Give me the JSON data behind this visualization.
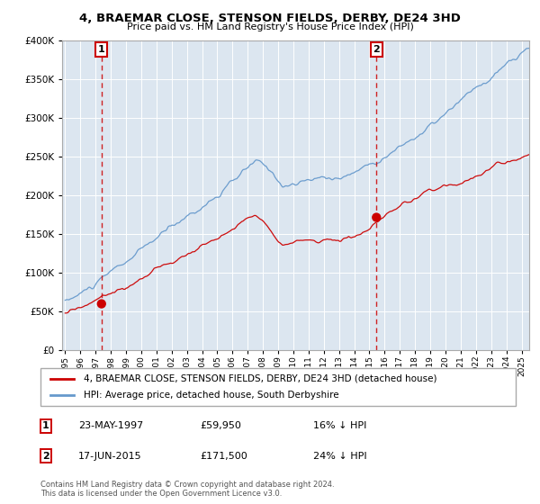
{
  "title": "4, BRAEMAR CLOSE, STENSON FIELDS, DERBY, DE24 3HD",
  "subtitle": "Price paid vs. HM Land Registry's House Price Index (HPI)",
  "legend_line1": "4, BRAEMAR CLOSE, STENSON FIELDS, DERBY, DE24 3HD (detached house)",
  "legend_line2": "HPI: Average price, detached house, South Derbyshire",
  "annotation1_label": "1",
  "annotation1_date": "23-MAY-1997",
  "annotation1_price": "£59,950",
  "annotation1_hpi": "16% ↓ HPI",
  "annotation1_year": 1997.39,
  "annotation1_value": 59950,
  "annotation2_label": "2",
  "annotation2_date": "17-JUN-2015",
  "annotation2_price": "£171,500",
  "annotation2_hpi": "24% ↓ HPI",
  "annotation2_year": 2015.46,
  "annotation2_value": 171500,
  "sale_color": "#cc0000",
  "hpi_color": "#6699cc",
  "vline_color": "#cc0000",
  "copyright": "Contains HM Land Registry data © Crown copyright and database right 2024.\nThis data is licensed under the Open Government Licence v3.0.",
  "ylim": [
    0,
    400000
  ],
  "xlim_start": 1994.8,
  "xlim_end": 2025.5
}
